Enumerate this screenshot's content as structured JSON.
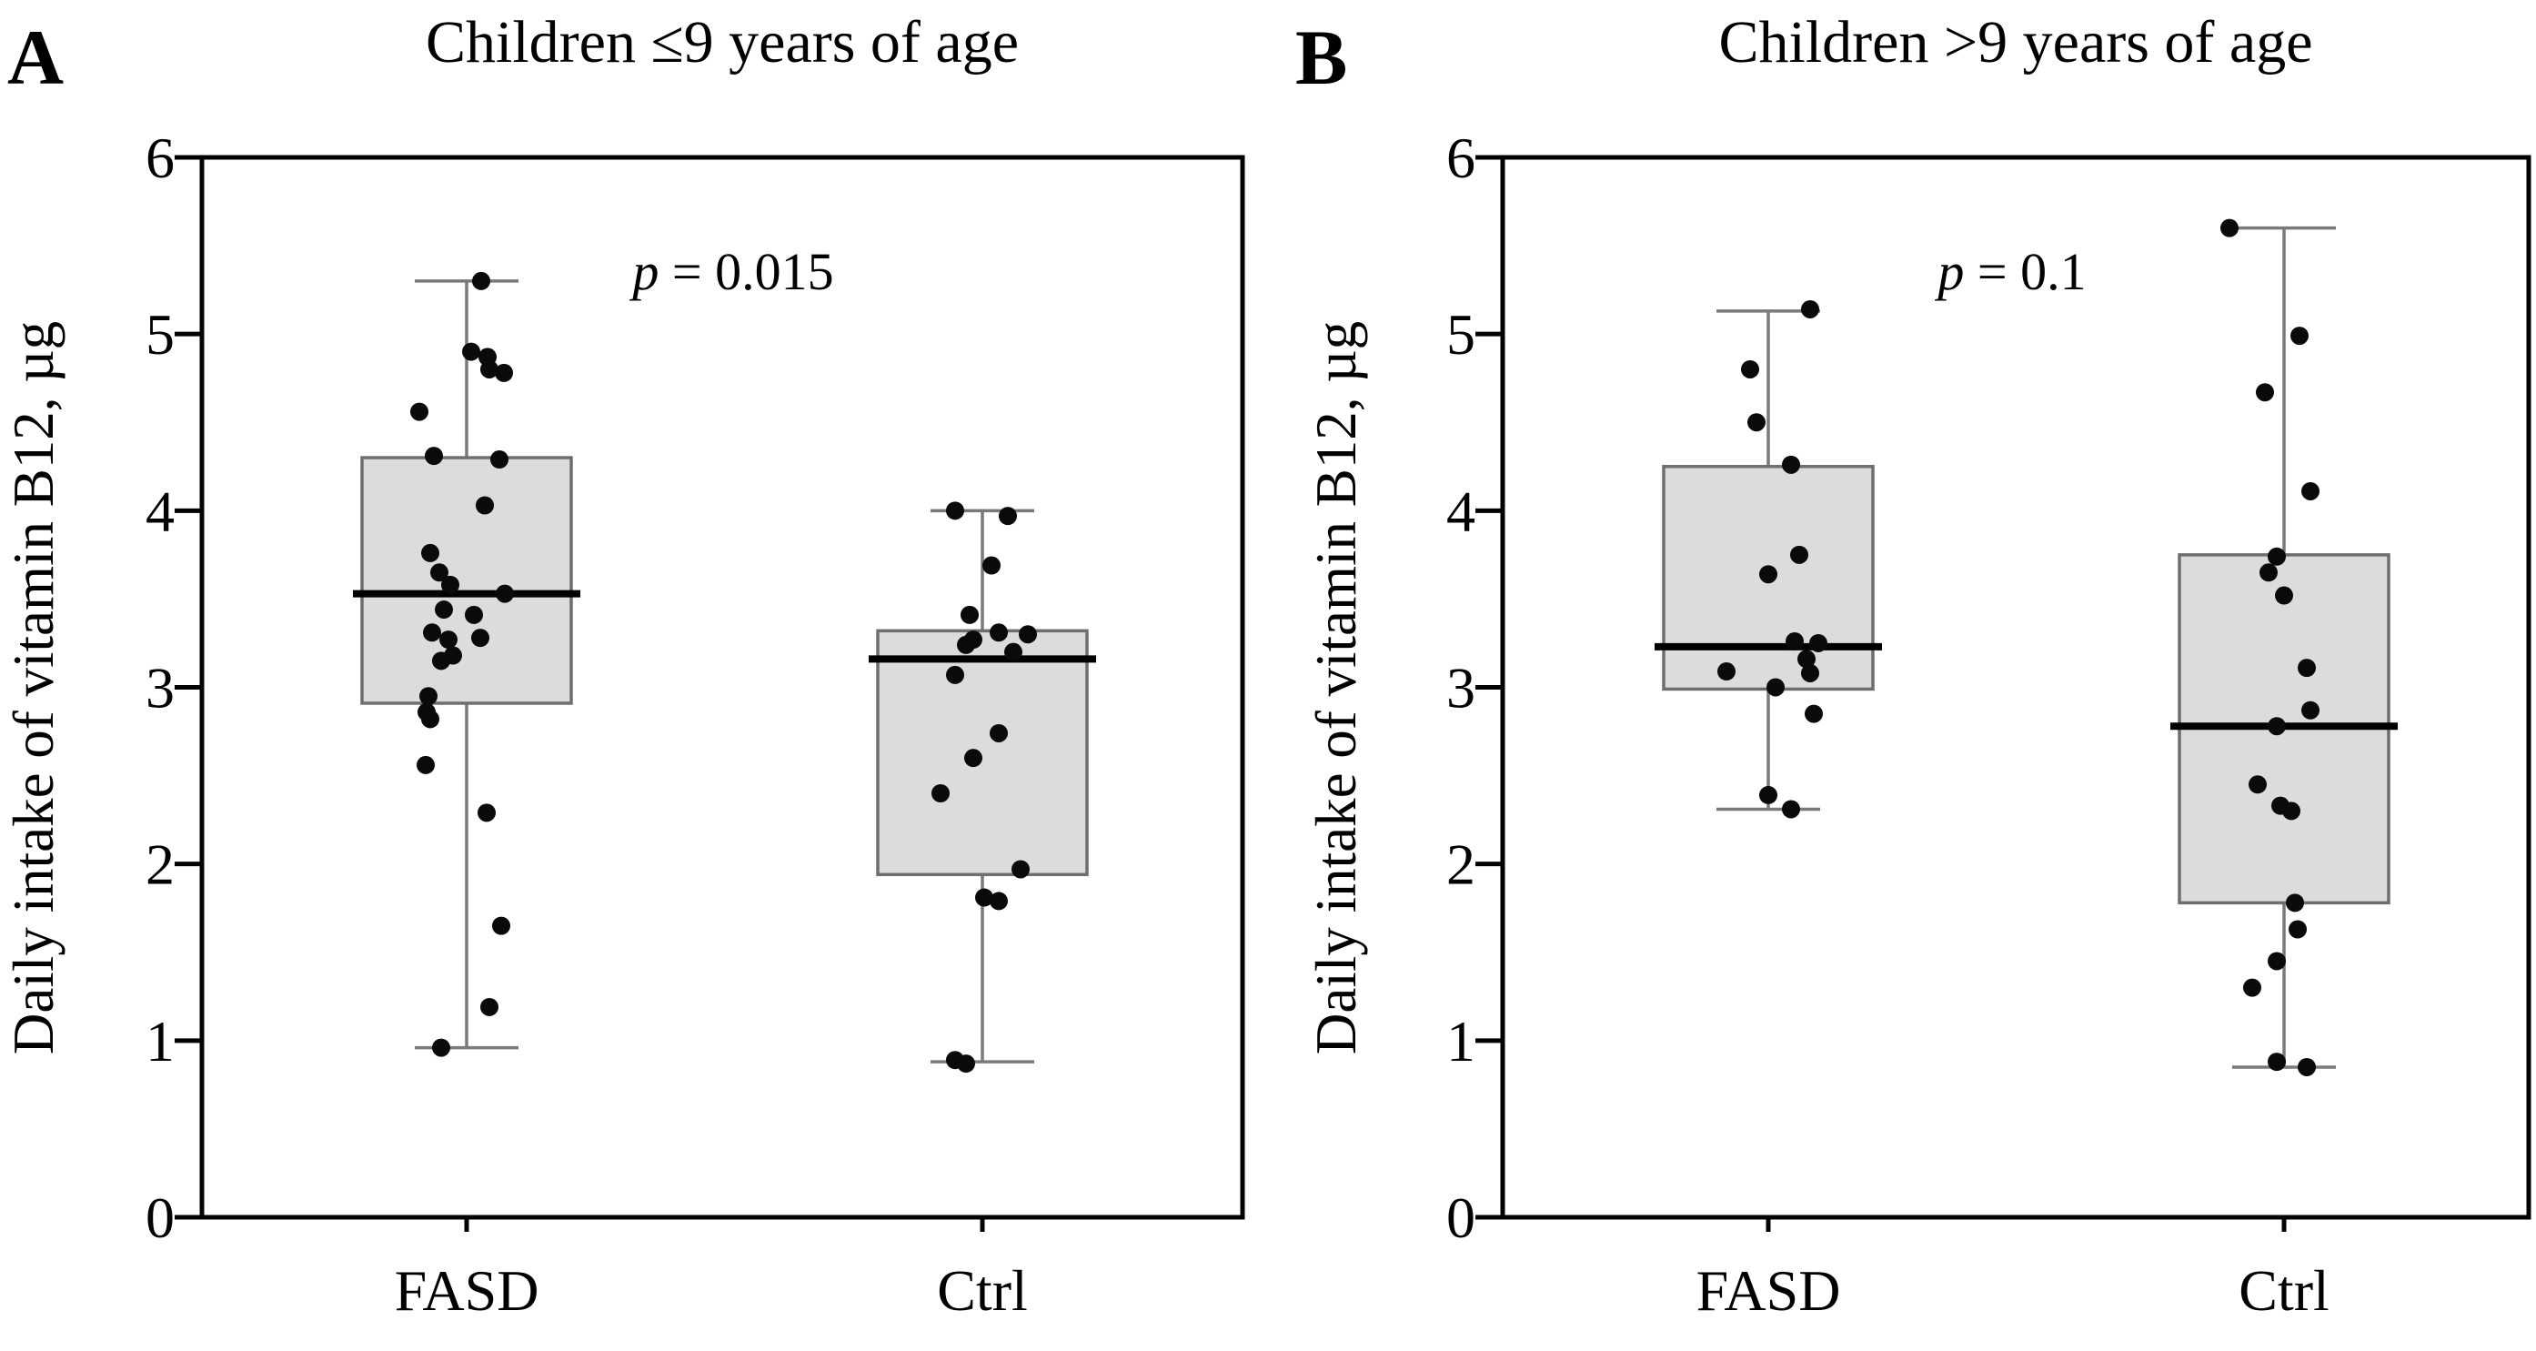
{
  "figure": {
    "background": "#ffffff",
    "colors": {
      "frame": "#000000",
      "box_fill": "#dcdcdc",
      "box_border": "#6e6e6e",
      "whisker": "#7a7a7a",
      "median": "#000000",
      "point": "#0a0a0a",
      "text": "#000000"
    }
  },
  "chart_data": [
    {
      "type": "box",
      "panel_label": "A",
      "title": "Children ≤9 years of age",
      "p_prefix": "p",
      "p_value": " = 0.015",
      "ylabel": "Daily intake of vitamin B12, µg",
      "ylim": [
        0,
        6
      ],
      "yticks": [
        0,
        1,
        2,
        3,
        4,
        5,
        6
      ],
      "legend": "none",
      "grid": false,
      "categories": [
        "FASD",
        "Ctrl"
      ],
      "groups": [
        {
          "name": "FASD",
          "box": {
            "q1": 2.91,
            "median": 3.53,
            "q3": 4.3,
            "whisker_low": 0.96,
            "whisker_high": 5.3
          },
          "points": [
            [
              16,
              5.3
            ],
            [
              5,
              4.9
            ],
            [
              23,
              4.87
            ],
            [
              25,
              4.8
            ],
            [
              41,
              4.78
            ],
            [
              -52,
              4.56
            ],
            [
              -36,
              4.31
            ],
            [
              36,
              4.29
            ],
            [
              20,
              4.03
            ],
            [
              -40,
              3.76
            ],
            [
              -30,
              3.65
            ],
            [
              -18,
              3.58
            ],
            [
              42,
              3.53
            ],
            [
              -25,
              3.44
            ],
            [
              8,
              3.41
            ],
            [
              -38,
              3.31
            ],
            [
              15,
              3.28
            ],
            [
              -20,
              3.27
            ],
            [
              -15,
              3.18
            ],
            [
              -28,
              3.15
            ],
            [
              -42,
              2.95
            ],
            [
              -44,
              2.86
            ],
            [
              -40,
              2.82
            ],
            [
              -45,
              2.56
            ],
            [
              22,
              2.29
            ],
            [
              38,
              1.65
            ],
            [
              25,
              1.19
            ],
            [
              -28,
              0.96
            ]
          ]
        },
        {
          "name": "Ctrl",
          "box": {
            "q1": 1.94,
            "median": 3.16,
            "q3": 3.32,
            "whisker_low": 0.88,
            "whisker_high": 4.0
          },
          "points": [
            [
              -30,
              4.0
            ],
            [
              28,
              3.97
            ],
            [
              10,
              3.69
            ],
            [
              -14,
              3.41
            ],
            [
              18,
              3.31
            ],
            [
              50,
              3.3
            ],
            [
              -10,
              3.27
            ],
            [
              -18,
              3.24
            ],
            [
              34,
              3.2
            ],
            [
              -30,
              3.07
            ],
            [
              18,
              2.74
            ],
            [
              -10,
              2.6
            ],
            [
              -46,
              2.4
            ],
            [
              42,
              1.97
            ],
            [
              2,
              1.81
            ],
            [
              18,
              1.79
            ],
            [
              -30,
              0.89
            ],
            [
              -18,
              0.87
            ]
          ]
        }
      ]
    },
    {
      "type": "box",
      "panel_label": "B",
      "title": "Children >9 years of age",
      "p_prefix": "p",
      "p_value": " = 0.1",
      "ylabel": "Daily intake of vitamin B12, µg",
      "ylim": [
        0,
        6
      ],
      "yticks": [
        0,
        1,
        2,
        3,
        4,
        5,
        6
      ],
      "legend": "none",
      "grid": false,
      "categories": [
        "FASD",
        "Ctrl"
      ],
      "groups": [
        {
          "name": "FASD",
          "box": {
            "q1": 2.99,
            "median": 3.23,
            "q3": 4.25,
            "whisker_low": 2.31,
            "whisker_high": 5.13
          },
          "points": [
            [
              46,
              5.14
            ],
            [
              -20,
              4.8
            ],
            [
              -13,
              4.5
            ],
            [
              25,
              4.26
            ],
            [
              34,
              3.75
            ],
            [
              0,
              3.64
            ],
            [
              29,
              3.26
            ],
            [
              55,
              3.25
            ],
            [
              42,
              3.16
            ],
            [
              -46,
              3.09
            ],
            [
              46,
              3.08
            ],
            [
              8,
              3.0
            ],
            [
              50,
              2.85
            ],
            [
              0,
              2.39
            ],
            [
              25,
              2.31
            ]
          ]
        },
        {
          "name": "Ctrl",
          "box": {
            "q1": 1.78,
            "median": 2.78,
            "q3": 3.75,
            "whisker_low": 0.85,
            "whisker_high": 5.6
          },
          "points": [
            [
              -60,
              5.6
            ],
            [
              17,
              4.99
            ],
            [
              -21,
              4.67
            ],
            [
              29,
              4.11
            ],
            [
              -8,
              3.74
            ],
            [
              -17,
              3.65
            ],
            [
              0,
              3.52
            ],
            [
              25,
              3.11
            ],
            [
              29,
              2.87
            ],
            [
              -8,
              2.78
            ],
            [
              -29,
              2.45
            ],
            [
              -4,
              2.33
            ],
            [
              8,
              2.3
            ],
            [
              12,
              1.78
            ],
            [
              15,
              1.63
            ],
            [
              -8,
              1.45
            ],
            [
              -35,
              1.3
            ],
            [
              -8,
              0.88
            ],
            [
              25,
              0.85
            ]
          ]
        }
      ]
    }
  ]
}
